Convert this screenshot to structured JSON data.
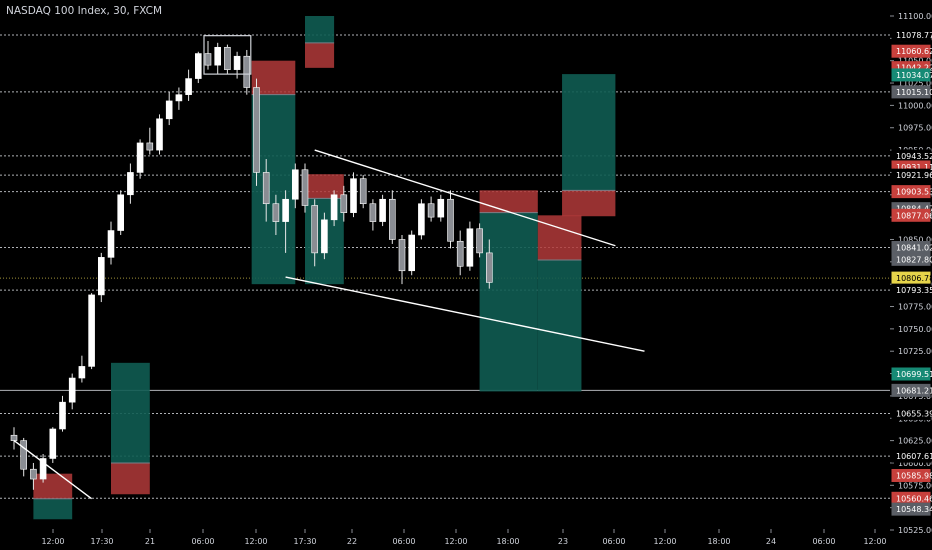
{
  "header": {
    "title": "NASDAQ 100 Index, 30, FXCM"
  },
  "chart_data": {
    "type": "candlestick",
    "symbol": "NASDAQ 100 Index",
    "interval": "30",
    "source": "FXCM",
    "ylim": [
      10525,
      11100
    ],
    "price_axis_ticks": [
      11100,
      11075,
      11050,
      11025,
      11000,
      10975,
      10950,
      10925,
      10900,
      10875,
      10850,
      10825,
      10800,
      10775,
      10750,
      10725,
      10700,
      10675,
      10650,
      10625,
      10600,
      10575,
      10550,
      10525
    ],
    "time_axis_ticks": [
      "12:00",
      "17:30",
      "21",
      "06:00",
      "12:00",
      "17:30",
      "22",
      "06:00",
      "12:00",
      "18:00",
      "23",
      "06:00",
      "12:00",
      "18:00",
      "24",
      "06:00",
      "12:00"
    ],
    "price_tags": [
      {
        "value": 11078.77,
        "label": "11078.77",
        "style": "plain"
      },
      {
        "value": 11060.62,
        "label": "11060.62",
        "style": "red"
      },
      {
        "value": 11042.22,
        "label": "11042.22",
        "style": "red"
      },
      {
        "value": 11034.07,
        "label": "11034.07",
        "style": "teal"
      },
      {
        "value": 11015.1,
        "label": "11015.10",
        "style": "gray"
      },
      {
        "value": 10943.52,
        "label": "10943.52",
        "style": "plain"
      },
      {
        "value": 10931.11,
        "label": "10931.11",
        "style": "red"
      },
      {
        "value": 10921.96,
        "label": "10921.96",
        "style": "plain"
      },
      {
        "value": 10903.53,
        "label": "10903.53",
        "style": "red"
      },
      {
        "value": 10884.47,
        "label": "10884.47",
        "style": "gray"
      },
      {
        "value": 10877.06,
        "label": "10877.06",
        "style": "red"
      },
      {
        "value": 10841.02,
        "label": "10841.02",
        "style": "gray"
      },
      {
        "value": 10827.8,
        "label": "10827.80",
        "style": "gray"
      },
      {
        "value": 10806.78,
        "label": "10806.78",
        "style": "yellow"
      },
      {
        "value": 10793.35,
        "label": "10793.35",
        "style": "plain"
      },
      {
        "value": 10699.51,
        "label": "10699.51",
        "style": "teal"
      },
      {
        "value": 10681.21,
        "label": "10681.21",
        "style": "gray"
      },
      {
        "value": 10655.39,
        "label": "10655.39",
        "style": "plain"
      },
      {
        "value": 10607.61,
        "label": "10607.61",
        "style": "plain"
      },
      {
        "value": 10585.98,
        "label": "10585.98",
        "style": "red"
      },
      {
        "value": 10560.46,
        "label": "10560.46",
        "style": "red"
      },
      {
        "value": 10548.34,
        "label": "10548.34",
        "style": "gray"
      }
    ],
    "horizontal_levels": [
      11078.77,
      11015.1,
      10943.52,
      10921.96,
      10903.53,
      10841.02,
      10806.78,
      10793.35,
      10681.21,
      10655.39,
      10607.61,
      10560.46
    ],
    "trendlines": [
      {
        "from": [
          0,
          10625
        ],
        "to": [
          8,
          10560
        ]
      },
      {
        "from": [
          31,
          10950
        ],
        "to": [
          62,
          10843
        ]
      },
      {
        "from": [
          28,
          10808
        ],
        "to": [
          65,
          10725
        ]
      }
    ],
    "position_boxes": [
      {
        "x0": 2,
        "x1": 6,
        "entry": 10560,
        "stop": 10588,
        "target": 10537,
        "direction": "short"
      },
      {
        "x0": 10,
        "x1": 14,
        "entry": 10600,
        "stop": 10565,
        "target": 10712,
        "direction": "long"
      },
      {
        "x0": 24.5,
        "x1": 29,
        "entry": 11012,
        "stop": 11050,
        "target": 10800,
        "direction": "short"
      },
      {
        "x0": 30,
        "x1": 33,
        "entry": 11070,
        "stop": 11042,
        "target": 11100,
        "direction": "short"
      },
      {
        "x0": 30,
        "x1": 34,
        "entry": 10896,
        "stop": 10923,
        "target": 10800,
        "direction": "short"
      },
      {
        "x0": 48,
        "x1": 54,
        "entry": 10880,
        "stop": 10905,
        "target": 10680,
        "direction": "short"
      },
      {
        "x0": 54,
        "x1": 58.5,
        "entry": 10827,
        "stop": 10877,
        "target": 10680,
        "direction": "short"
      },
      {
        "x0": 56.5,
        "x1": 62,
        "entry": 10905,
        "stop": 10876,
        "target": 11035,
        "direction": "long"
      }
    ],
    "candles": [
      [
        10631,
        10640,
        10615,
        10625
      ],
      [
        10625,
        10628,
        10585,
        10593
      ],
      [
        10593,
        10600,
        10570,
        10582
      ],
      [
        10582,
        10610,
        10578,
        10605
      ],
      [
        10605,
        10640,
        10600,
        10638
      ],
      [
        10638,
        10675,
        10635,
        10668
      ],
      [
        10668,
        10700,
        10660,
        10695
      ],
      [
        10695,
        10720,
        10690,
        10708
      ],
      [
        10708,
        10790,
        10705,
        10788
      ],
      [
        10788,
        10835,
        10780,
        10830
      ],
      [
        10830,
        10870,
        10822,
        10860
      ],
      [
        10860,
        10905,
        10855,
        10900
      ],
      [
        10900,
        10935,
        10890,
        10925
      ],
      [
        10925,
        10962,
        10918,
        10958
      ],
      [
        10958,
        10975,
        10945,
        10950
      ],
      [
        10950,
        10990,
        10945,
        10985
      ],
      [
        10985,
        11015,
        10978,
        11005
      ],
      [
        11005,
        11020,
        10995,
        11012
      ],
      [
        11012,
        11040,
        11005,
        11030
      ],
      [
        11030,
        11060,
        11025,
        11058
      ],
      [
        11058,
        11072,
        11040,
        11045
      ],
      [
        11045,
        11070,
        11035,
        11065
      ],
      [
        11065,
        11068,
        11035,
        11040
      ],
      [
        11040,
        11060,
        11030,
        11055
      ],
      [
        11055,
        11062,
        11012,
        11020
      ],
      [
        11020,
        11030,
        10910,
        10925
      ],
      [
        10925,
        10940,
        10870,
        10890
      ],
      [
        10890,
        10900,
        10855,
        10870
      ],
      [
        10870,
        10905,
        10835,
        10895
      ],
      [
        10895,
        10935,
        10885,
        10928
      ],
      [
        10928,
        10935,
        10880,
        10888
      ],
      [
        10888,
        10895,
        10820,
        10835
      ],
      [
        10835,
        10880,
        10828,
        10872
      ],
      [
        10872,
        10905,
        10865,
        10900
      ],
      [
        10900,
        10910,
        10870,
        10880
      ],
      [
        10880,
        10925,
        10875,
        10918
      ],
      [
        10918,
        10922,
        10885,
        10890
      ],
      [
        10890,
        10895,
        10860,
        10870
      ],
      [
        10870,
        10900,
        10865,
        10895
      ],
      [
        10895,
        10905,
        10845,
        10850
      ],
      [
        10850,
        10855,
        10800,
        10815
      ],
      [
        10815,
        10860,
        10810,
        10855
      ],
      [
        10855,
        10895,
        10850,
        10890
      ],
      [
        10890,
        10898,
        10870,
        10875
      ],
      [
        10875,
        10900,
        10870,
        10895
      ],
      [
        10895,
        10905,
        10840,
        10848
      ],
      [
        10848,
        10860,
        10810,
        10820
      ],
      [
        10820,
        10870,
        10815,
        10862
      ],
      [
        10862,
        10868,
        10830,
        10835
      ],
      [
        10835,
        10850,
        10795,
        10802
      ]
    ]
  }
}
